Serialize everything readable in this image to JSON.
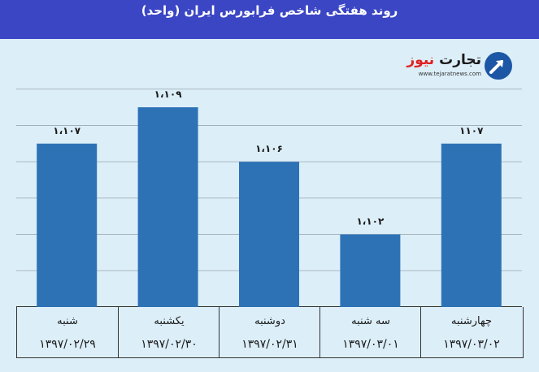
{
  "header": {
    "title": "روند هفتگی شاخص فرابورس ایران (واحد)"
  },
  "logo": {
    "name_main": "تجارت",
    "name_accent": "نیوز",
    "url": "www.tejaratnews.com"
  },
  "colors": {
    "header_bg": "#3b46c4",
    "chart_bg": "#dceef8",
    "bar": "#2e72b6"
  },
  "chart_data": {
    "type": "bar",
    "title": "روند هفتگی شاخص فرابورس ایران (واحد)",
    "categories": [
      "شنبه",
      "یکشنبه",
      "دوشنبه",
      "سه شنبه",
      "چهارشنبه"
    ],
    "dates": [
      "۱۳۹۷/۰۲/۲۹",
      "۱۳۹۷/۰۲/۳۰",
      "۱۳۹۷/۰۲/۳۱",
      "۱۳۹۷/۰۳/۰۱",
      "۱۳۹۷/۰۳/۰۲"
    ],
    "values": [
      1107,
      1109,
      1106,
      1102,
      1107
    ],
    "data_labels": [
      "۱،۱۰۷",
      "۱،۱۰۹",
      "۱،۱۰۶",
      "۱،۱۰۲",
      "۱۱۰۷"
    ],
    "ylim": [
      1098,
      1112
    ],
    "grid": true,
    "legend": "none"
  }
}
